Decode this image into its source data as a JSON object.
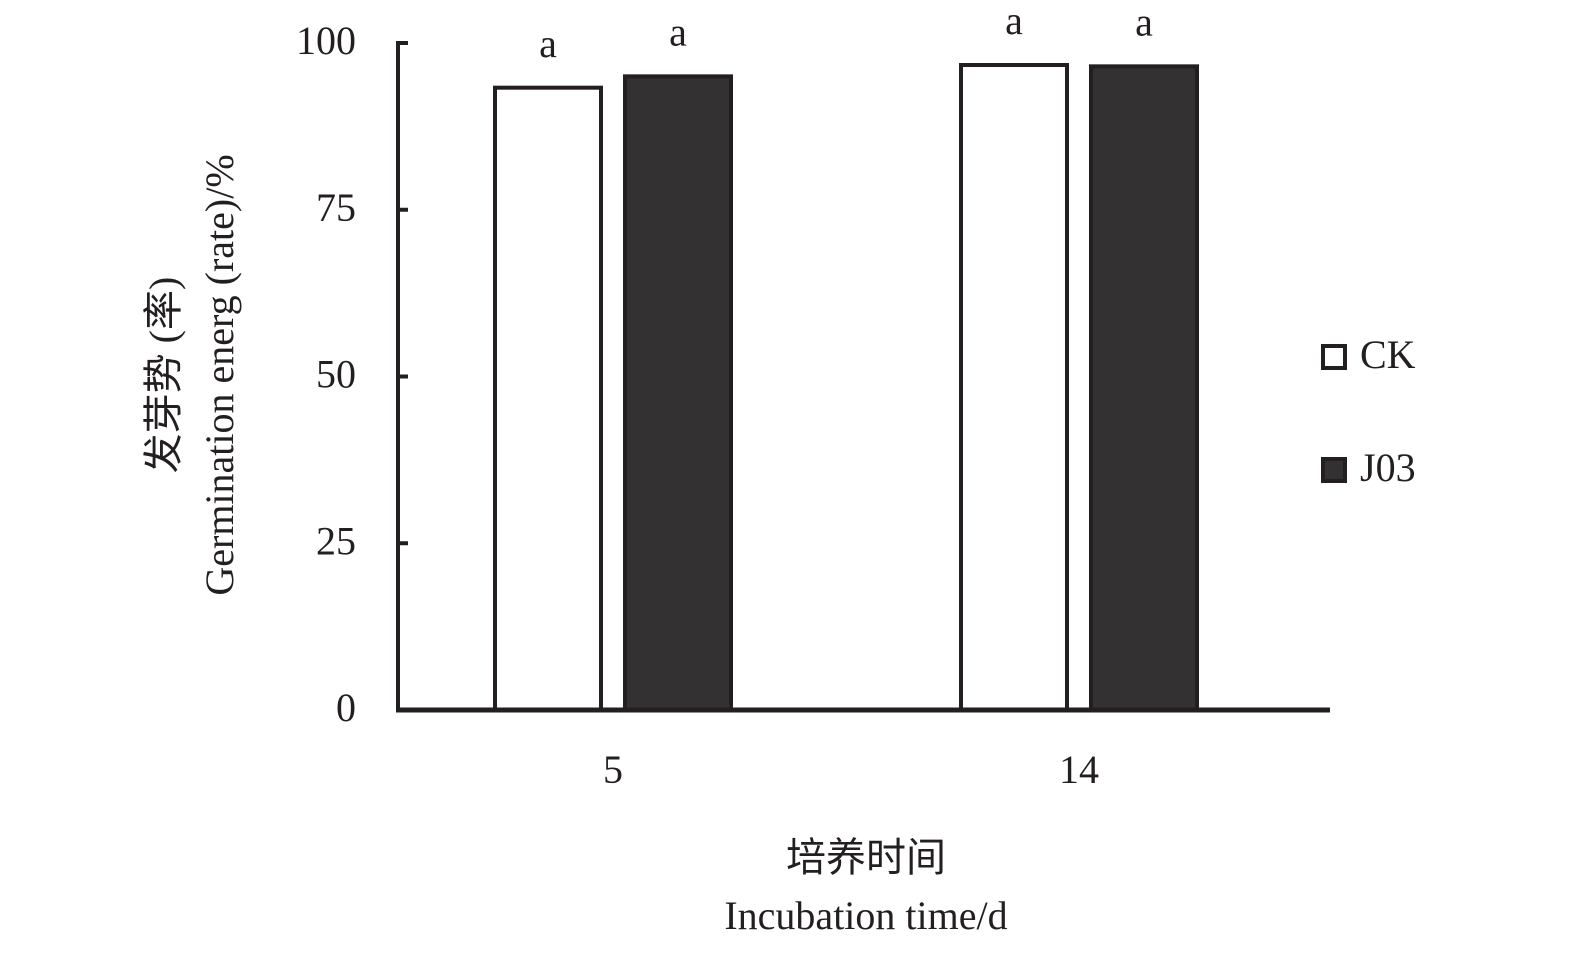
{
  "chart_data": {
    "type": "bar",
    "y_label_lines": [
      "发芽势 (率)",
      "Germination energ (rate)/%"
    ],
    "x_label_lines": [
      "培养时间",
      "Incubation time/d"
    ],
    "categories": [
      "5",
      "14"
    ],
    "series": [
      {
        "name": "CK",
        "color": "#ffffff",
        "values": [
          93.3,
          96.7
        ],
        "annotations": [
          "a",
          "a"
        ]
      },
      {
        "name": "J03",
        "color": "#333132",
        "values": [
          95,
          96.5
        ],
        "annotations": [
          "a",
          "a"
        ]
      }
    ],
    "ylim": [
      0,
      100
    ],
    "yticks": [
      0,
      25,
      50,
      75,
      100
    ],
    "grid": false,
    "legend": "right"
  }
}
